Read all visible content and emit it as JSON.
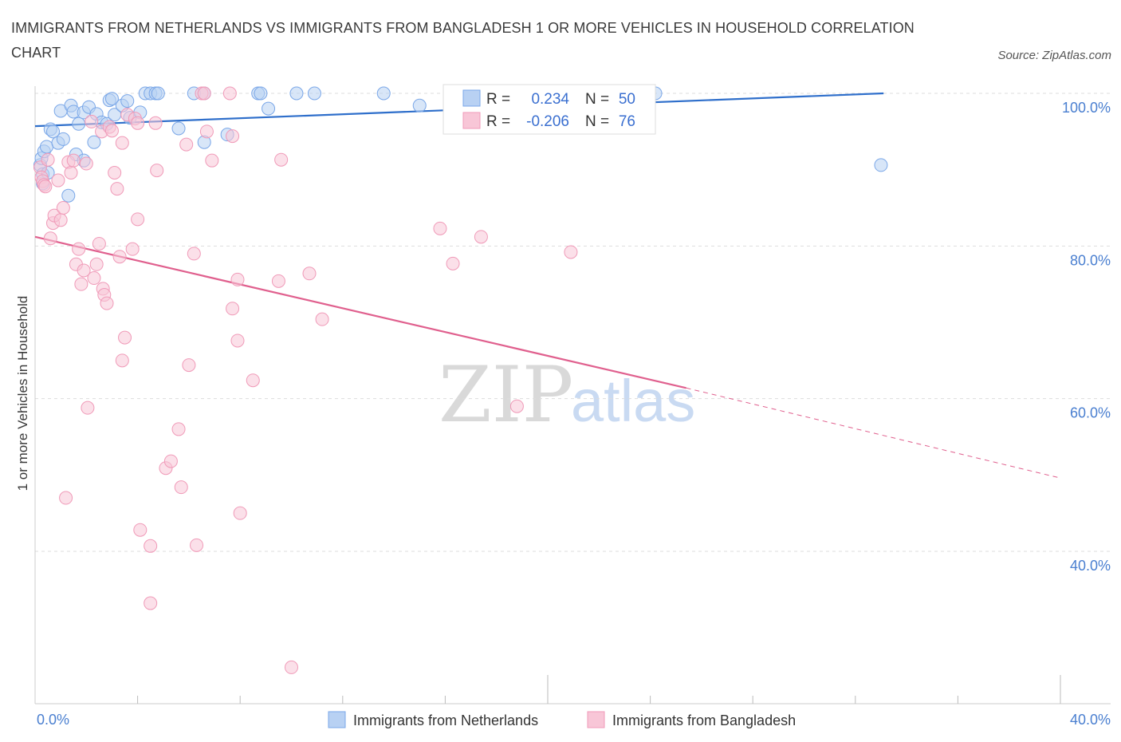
{
  "title": "IMMIGRANTS FROM NETHERLANDS VS IMMIGRANTS FROM BANGLADESH 1 OR MORE VEHICLES IN HOUSEHOLD CORRELATION CHART",
  "source": "Source: ZipAtlas.com",
  "watermark": {
    "zip": "ZIP",
    "atlas": "atlas"
  },
  "colors": {
    "netherlands": "#7aa7e8",
    "netherlands_fill": "#b8d1f3",
    "netherlands_line": "#2f6fcb",
    "bangladesh": "#f09ab8",
    "bangladesh_fill": "#f8c6d7",
    "bangladesh_line": "#e0608e",
    "axis_label": "#4a7fd0",
    "grid": "#dddddd"
  },
  "stats_box": {
    "rows": [
      {
        "r_label": "R =",
        "r_value": "0.234",
        "n_label": "N =",
        "n_value": "50"
      },
      {
        "r_label": "R =",
        "r_value": "-0.206",
        "n_label": "N =",
        "n_value": "76"
      }
    ]
  },
  "chart_data": {
    "type": "scatter",
    "title": "IMMIGRANTS FROM NETHERLANDS VS IMMIGRANTS FROM BANGLADESH 1 OR MORE VEHICLES IN HOUSEHOLD CORRELATION CHART",
    "xlabel": "",
    "ylabel": "1 or more Vehicles in Household",
    "xlim": [
      0,
      40
    ],
    "ylim": [
      20,
      102
    ],
    "x_tick_labels": [
      "0.0%",
      "40.0%"
    ],
    "y_ticks": [
      40,
      60,
      80,
      100
    ],
    "y_tick_labels": [
      "40.0%",
      "60.0%",
      "80.0%",
      "100.0%"
    ],
    "grid": true,
    "legend_position": "bottom",
    "series": [
      {
        "name": "Immigrants from Netherlands",
        "R": 0.234,
        "N": 50,
        "trend": {
          "x": [
            0,
            33.1
          ],
          "y": [
            95.7,
            100.0
          ],
          "dashed_to_x": null
        },
        "points": [
          [
            0.2,
            90.6
          ],
          [
            0.25,
            91.5
          ],
          [
            0.3,
            88.2
          ],
          [
            0.3,
            89.4
          ],
          [
            0.35,
            92.4
          ],
          [
            0.45,
            93.0
          ],
          [
            0.5,
            89.6
          ],
          [
            0.6,
            95.3
          ],
          [
            0.7,
            95.0
          ],
          [
            0.9,
            93.5
          ],
          [
            1.0,
            97.7
          ],
          [
            1.1,
            94.0
          ],
          [
            1.3,
            86.6
          ],
          [
            1.4,
            98.4
          ],
          [
            1.5,
            97.6
          ],
          [
            1.6,
            92.0
          ],
          [
            1.7,
            96.0
          ],
          [
            1.9,
            97.5
          ],
          [
            1.9,
            91.2
          ],
          [
            2.1,
            98.2
          ],
          [
            2.3,
            93.6
          ],
          [
            2.4,
            97.3
          ],
          [
            2.6,
            96.2
          ],
          [
            2.8,
            96.0
          ],
          [
            2.9,
            99.1
          ],
          [
            3.0,
            99.3
          ],
          [
            3.1,
            97.2
          ],
          [
            3.4,
            98.4
          ],
          [
            3.6,
            99.0
          ],
          [
            3.7,
            96.8
          ],
          [
            4.1,
            97.5
          ],
          [
            4.3,
            100.0
          ],
          [
            4.5,
            100.0
          ],
          [
            4.7,
            100.0
          ],
          [
            4.8,
            100.0
          ],
          [
            5.6,
            95.4
          ],
          [
            6.2,
            100.0
          ],
          [
            6.6,
            100.0
          ],
          [
            6.6,
            93.6
          ],
          [
            7.5,
            94.6
          ],
          [
            8.7,
            100.0
          ],
          [
            8.8,
            100.0
          ],
          [
            9.1,
            98.0
          ],
          [
            10.2,
            100.0
          ],
          [
            10.9,
            100.0
          ],
          [
            13.6,
            100.0
          ],
          [
            15.0,
            98.4
          ],
          [
            16.4,
            100.0
          ],
          [
            24.2,
            100.0
          ],
          [
            33.0,
            90.6
          ]
        ]
      },
      {
        "name": "Immigrants from Bangladesh",
        "R": -0.206,
        "N": 76,
        "trend": {
          "x": [
            0,
            25.4
          ],
          "y": [
            81.2,
            61.4
          ],
          "dashed_to_x": 40,
          "dashed_to_y": 49.6
        },
        "points": [
          [
            0.2,
            90.3
          ],
          [
            0.25,
            89.0
          ],
          [
            0.3,
            88.5
          ],
          [
            0.35,
            88.0
          ],
          [
            0.4,
            87.8
          ],
          [
            0.5,
            91.3
          ],
          [
            0.6,
            81.0
          ],
          [
            0.7,
            83.0
          ],
          [
            0.75,
            84.0
          ],
          [
            0.9,
            88.6
          ],
          [
            1.0,
            83.4
          ],
          [
            1.1,
            85.0
          ],
          [
            1.2,
            47.0
          ],
          [
            1.3,
            91.0
          ],
          [
            1.4,
            89.6
          ],
          [
            1.5,
            91.2
          ],
          [
            1.6,
            77.6
          ],
          [
            1.7,
            79.6
          ],
          [
            1.8,
            75.0
          ],
          [
            1.9,
            76.8
          ],
          [
            2.0,
            90.8
          ],
          [
            2.05,
            58.8
          ],
          [
            2.2,
            96.3
          ],
          [
            2.3,
            75.8
          ],
          [
            2.4,
            77.6
          ],
          [
            2.5,
            80.3
          ],
          [
            2.6,
            95.0
          ],
          [
            2.65,
            74.4
          ],
          [
            2.7,
            73.6
          ],
          [
            2.8,
            72.5
          ],
          [
            2.9,
            95.6
          ],
          [
            3.0,
            95.1
          ],
          [
            3.1,
            89.6
          ],
          [
            3.2,
            87.5
          ],
          [
            3.3,
            78.6
          ],
          [
            3.4,
            93.5
          ],
          [
            3.4,
            65.0
          ],
          [
            3.5,
            68.0
          ],
          [
            3.6,
            97.2
          ],
          [
            3.8,
            79.6
          ],
          [
            3.9,
            96.7
          ],
          [
            4.0,
            96.1
          ],
          [
            4.0,
            83.5
          ],
          [
            4.1,
            42.8
          ],
          [
            4.5,
            33.2
          ],
          [
            4.5,
            40.7
          ],
          [
            4.7,
            96.1
          ],
          [
            4.75,
            89.9
          ],
          [
            5.1,
            50.9
          ],
          [
            5.3,
            51.8
          ],
          [
            5.6,
            56.0
          ],
          [
            5.7,
            48.4
          ],
          [
            5.9,
            93.3
          ],
          [
            6.0,
            64.4
          ],
          [
            6.2,
            79.0
          ],
          [
            6.3,
            40.8
          ],
          [
            6.5,
            100.0
          ],
          [
            6.6,
            100.0
          ],
          [
            6.7,
            95.0
          ],
          [
            6.9,
            91.2
          ],
          [
            7.6,
            100.0
          ],
          [
            7.7,
            94.4
          ],
          [
            7.7,
            71.8
          ],
          [
            7.9,
            67.6
          ],
          [
            7.9,
            75.6
          ],
          [
            8.0,
            45.0
          ],
          [
            8.5,
            62.4
          ],
          [
            9.5,
            75.4
          ],
          [
            9.6,
            91.3
          ],
          [
            10.0,
            24.8
          ],
          [
            10.7,
            76.4
          ],
          [
            11.2,
            70.4
          ],
          [
            15.8,
            82.3
          ],
          [
            17.4,
            81.2
          ],
          [
            16.3,
            77.7
          ],
          [
            18.8,
            59.0
          ],
          [
            20.9,
            79.2
          ]
        ]
      }
    ]
  },
  "legend": {
    "items": [
      {
        "label": "Immigrants from Netherlands",
        "color": "#b8d1f3",
        "border": "#7aa7e8"
      },
      {
        "label": "Immigrants from Bangladesh",
        "color": "#f8c6d7",
        "border": "#f09ab8"
      }
    ]
  }
}
